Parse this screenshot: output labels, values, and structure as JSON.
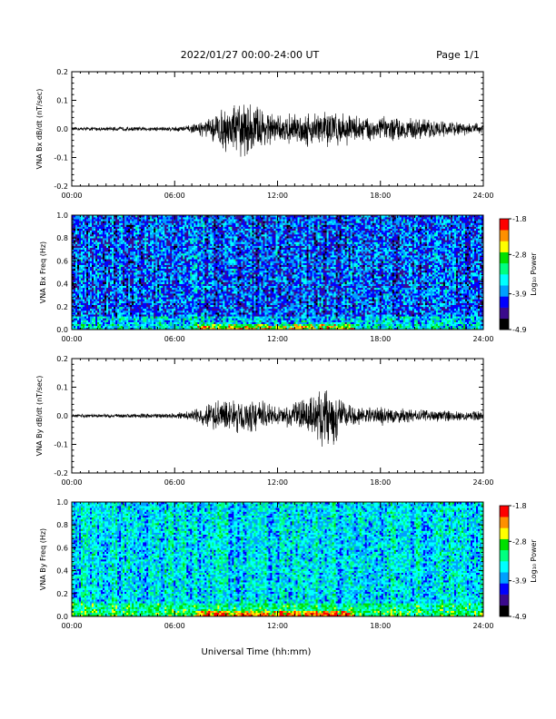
{
  "header": {
    "title": "2022/01/27  00:00-24:00 UT",
    "page": "Page 1/1"
  },
  "xlabel": "Universal Time (hh:mm)",
  "x_ticks": [
    "00:00",
    "06:00",
    "12:00",
    "18:00",
    "24:00"
  ],
  "colorbar": {
    "label": "Log₁₀ Power",
    "ticks": [
      "-1.8",
      "-2.8",
      "-3.9",
      "-4.9"
    ],
    "colors": [
      "#000000",
      "#3a0a8c",
      "#0000ff",
      "#00a0ff",
      "#00ffff",
      "#00ff80",
      "#00e000",
      "#ffff00",
      "#ff9000",
      "#ff0000"
    ]
  },
  "chart_data": [
    {
      "type": "line",
      "ylabel": "VNA Bx dB/dt (nT/sec)",
      "xlim_hours": [
        0,
        24
      ],
      "ylim": [
        -0.2,
        0.2
      ],
      "y_ticks": [
        "0.2",
        "0.1",
        "0.0",
        "-0.1",
        "-0.2"
      ],
      "x_ticks": [
        "00:00",
        "06:00",
        "12:00",
        "18:00",
        "24:00"
      ],
      "series": [
        {
          "envelope_hours": [
            0,
            2,
            4,
            6,
            7,
            8,
            9,
            10,
            11,
            12,
            13,
            14,
            15,
            16,
            17,
            18,
            19,
            20,
            21,
            22,
            23,
            24
          ],
          "envelope_amplitude": [
            0.007,
            0.008,
            0.008,
            0.01,
            0.015,
            0.04,
            0.09,
            0.11,
            0.09,
            0.05,
            0.06,
            0.07,
            0.075,
            0.06,
            0.05,
            0.05,
            0.045,
            0.04,
            0.035,
            0.03,
            0.025,
            0.02
          ]
        }
      ]
    },
    {
      "type": "heatmap",
      "ylabel": "VNA Bx Freq (Hz)",
      "xlim_hours": [
        0,
        24
      ],
      "ylim": [
        0.0,
        1.0
      ],
      "y_ticks": [
        "1.0",
        "0.8",
        "0.6",
        "0.4",
        "0.2",
        "0.0"
      ],
      "x_ticks": [
        "00:00",
        "06:00",
        "12:00",
        "18:00",
        "24:00"
      ],
      "zlim_log10_power": [
        -4.9,
        -1.8
      ],
      "note_values": "log10 power; background about -3.9, enhanced below 0.05 Hz from 07:30 to 16:00 UT"
    },
    {
      "type": "line",
      "ylabel": "VNA By dB/dt (nT/sec)",
      "xlim_hours": [
        0,
        24
      ],
      "ylim": [
        -0.2,
        0.2
      ],
      "y_ticks": [
        "0.2",
        "0.1",
        "0.0",
        "-0.1",
        "-0.2"
      ],
      "x_ticks": [
        "00:00",
        "06:00",
        "12:00",
        "18:00",
        "24:00"
      ],
      "series": [
        {
          "envelope_hours": [
            0,
            2,
            4,
            6,
            7,
            8,
            9,
            10,
            11,
            12,
            13,
            14,
            15,
            16,
            17,
            18,
            19,
            20,
            21,
            22,
            23,
            24
          ],
          "envelope_amplitude": [
            0.007,
            0.008,
            0.008,
            0.01,
            0.02,
            0.05,
            0.06,
            0.07,
            0.06,
            0.03,
            0.05,
            0.09,
            0.13,
            0.05,
            0.03,
            0.04,
            0.03,
            0.025,
            0.025,
            0.02,
            0.02,
            0.018
          ]
        }
      ]
    },
    {
      "type": "heatmap",
      "ylabel": "VNA By Freq (Hz)",
      "xlim_hours": [
        0,
        24
      ],
      "ylim": [
        0.0,
        1.0
      ],
      "y_ticks": [
        "1.0",
        "0.8",
        "0.6",
        "0.4",
        "0.2",
        "0.0"
      ],
      "x_ticks": [
        "00:00",
        "06:00",
        "12:00",
        "18:00",
        "24:00"
      ],
      "zlim_log10_power": [
        -4.9,
        -1.8
      ],
      "note_values": "log10 power; background about -3.5, enhanced below 0.05 Hz from 07:30 to 16:00 UT"
    }
  ]
}
